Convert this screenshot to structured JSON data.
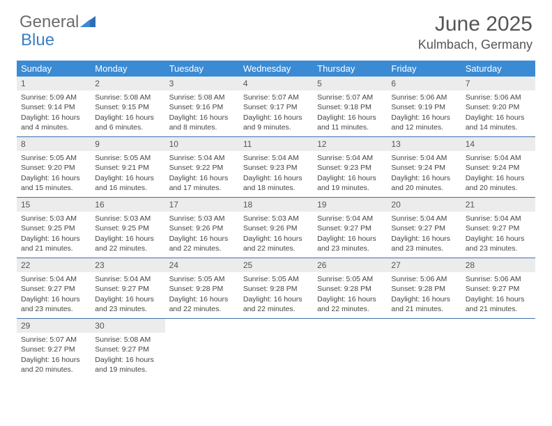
{
  "logo": {
    "text1": "General",
    "text2": "Blue"
  },
  "title": "June 2025",
  "location": "Kulmbach, Germany",
  "colors": {
    "header_bg": "#3b8bd4",
    "header_text": "#ffffff",
    "daynum_bg": "#ececec",
    "week_border": "#3b6fa8",
    "body_text": "#444444",
    "title_text": "#555555",
    "logo_gray": "#6b6b6b",
    "logo_blue": "#3b7fc4"
  },
  "day_names": [
    "Sunday",
    "Monday",
    "Tuesday",
    "Wednesday",
    "Thursday",
    "Friday",
    "Saturday"
  ],
  "weeks": [
    [
      {
        "n": "1",
        "sr": "5:09 AM",
        "ss": "9:14 PM",
        "dl": "16 hours and 4 minutes."
      },
      {
        "n": "2",
        "sr": "5:08 AM",
        "ss": "9:15 PM",
        "dl": "16 hours and 6 minutes."
      },
      {
        "n": "3",
        "sr": "5:08 AM",
        "ss": "9:16 PM",
        "dl": "16 hours and 8 minutes."
      },
      {
        "n": "4",
        "sr": "5:07 AM",
        "ss": "9:17 PM",
        "dl": "16 hours and 9 minutes."
      },
      {
        "n": "5",
        "sr": "5:07 AM",
        "ss": "9:18 PM",
        "dl": "16 hours and 11 minutes."
      },
      {
        "n": "6",
        "sr": "5:06 AM",
        "ss": "9:19 PM",
        "dl": "16 hours and 12 minutes."
      },
      {
        "n": "7",
        "sr": "5:06 AM",
        "ss": "9:20 PM",
        "dl": "16 hours and 14 minutes."
      }
    ],
    [
      {
        "n": "8",
        "sr": "5:05 AM",
        "ss": "9:20 PM",
        "dl": "16 hours and 15 minutes."
      },
      {
        "n": "9",
        "sr": "5:05 AM",
        "ss": "9:21 PM",
        "dl": "16 hours and 16 minutes."
      },
      {
        "n": "10",
        "sr": "5:04 AM",
        "ss": "9:22 PM",
        "dl": "16 hours and 17 minutes."
      },
      {
        "n": "11",
        "sr": "5:04 AM",
        "ss": "9:23 PM",
        "dl": "16 hours and 18 minutes."
      },
      {
        "n": "12",
        "sr": "5:04 AM",
        "ss": "9:23 PM",
        "dl": "16 hours and 19 minutes."
      },
      {
        "n": "13",
        "sr": "5:04 AM",
        "ss": "9:24 PM",
        "dl": "16 hours and 20 minutes."
      },
      {
        "n": "14",
        "sr": "5:04 AM",
        "ss": "9:24 PM",
        "dl": "16 hours and 20 minutes."
      }
    ],
    [
      {
        "n": "15",
        "sr": "5:03 AM",
        "ss": "9:25 PM",
        "dl": "16 hours and 21 minutes."
      },
      {
        "n": "16",
        "sr": "5:03 AM",
        "ss": "9:25 PM",
        "dl": "16 hours and 22 minutes."
      },
      {
        "n": "17",
        "sr": "5:03 AM",
        "ss": "9:26 PM",
        "dl": "16 hours and 22 minutes."
      },
      {
        "n": "18",
        "sr": "5:03 AM",
        "ss": "9:26 PM",
        "dl": "16 hours and 22 minutes."
      },
      {
        "n": "19",
        "sr": "5:04 AM",
        "ss": "9:27 PM",
        "dl": "16 hours and 23 minutes."
      },
      {
        "n": "20",
        "sr": "5:04 AM",
        "ss": "9:27 PM",
        "dl": "16 hours and 23 minutes."
      },
      {
        "n": "21",
        "sr": "5:04 AM",
        "ss": "9:27 PM",
        "dl": "16 hours and 23 minutes."
      }
    ],
    [
      {
        "n": "22",
        "sr": "5:04 AM",
        "ss": "9:27 PM",
        "dl": "16 hours and 23 minutes."
      },
      {
        "n": "23",
        "sr": "5:04 AM",
        "ss": "9:27 PM",
        "dl": "16 hours and 23 minutes."
      },
      {
        "n": "24",
        "sr": "5:05 AM",
        "ss": "9:28 PM",
        "dl": "16 hours and 22 minutes."
      },
      {
        "n": "25",
        "sr": "5:05 AM",
        "ss": "9:28 PM",
        "dl": "16 hours and 22 minutes."
      },
      {
        "n": "26",
        "sr": "5:05 AM",
        "ss": "9:28 PM",
        "dl": "16 hours and 22 minutes."
      },
      {
        "n": "27",
        "sr": "5:06 AM",
        "ss": "9:28 PM",
        "dl": "16 hours and 21 minutes."
      },
      {
        "n": "28",
        "sr": "5:06 AM",
        "ss": "9:27 PM",
        "dl": "16 hours and 21 minutes."
      }
    ],
    [
      {
        "n": "29",
        "sr": "5:07 AM",
        "ss": "9:27 PM",
        "dl": "16 hours and 20 minutes."
      },
      {
        "n": "30",
        "sr": "5:08 AM",
        "ss": "9:27 PM",
        "dl": "16 hours and 19 minutes."
      },
      null,
      null,
      null,
      null,
      null
    ]
  ],
  "labels": {
    "sunrise": "Sunrise:",
    "sunset": "Sunset:",
    "daylight": "Daylight:"
  }
}
